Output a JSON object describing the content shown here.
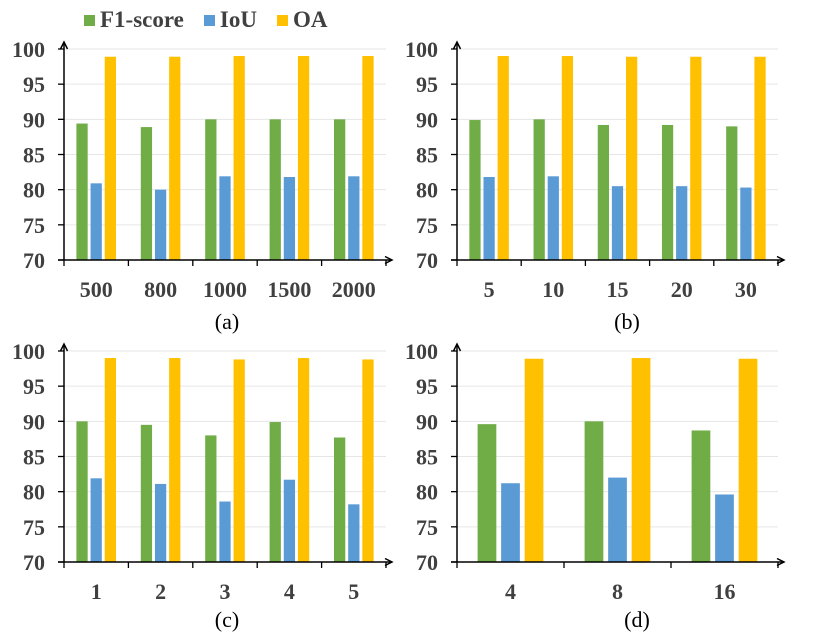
{
  "legend": [
    {
      "label": "F1-score",
      "color": "#70AD47"
    },
    {
      "label": "IoU",
      "color": "#5B9BD5"
    },
    {
      "label": "OA",
      "color": "#FFC000"
    }
  ],
  "colors": {
    "axis": "#000000",
    "grid": "#E6E6E6",
    "tick_text": "#404040"
  },
  "chart_data": [
    {
      "type": "bar",
      "caption": "(a)",
      "categories": [
        "500",
        "800",
        "1000",
        "1500",
        "2000"
      ],
      "series": [
        {
          "name": "F1-score",
          "values": [
            89.4,
            88.9,
            90.0,
            90.0,
            90.0
          ]
        },
        {
          "name": "IoU",
          "values": [
            80.9,
            80.0,
            81.9,
            81.8,
            81.9
          ]
        },
        {
          "name": "OA",
          "values": [
            98.9,
            98.9,
            99.0,
            99.0,
            99.0
          ]
        }
      ],
      "yticks": [
        "70",
        "75",
        "80",
        "85",
        "90",
        "95",
        "100"
      ],
      "ylim": [
        70,
        100
      ],
      "xlabel": "",
      "ylabel": "",
      "grid": true,
      "legend": "top-left"
    },
    {
      "type": "bar",
      "caption": "(b)",
      "categories": [
        "5",
        "10",
        "15",
        "20",
        "30"
      ],
      "series": [
        {
          "name": "F1-score",
          "values": [
            89.9,
            90.0,
            89.2,
            89.2,
            89.0
          ]
        },
        {
          "name": "IoU",
          "values": [
            81.8,
            81.9,
            80.5,
            80.5,
            80.3
          ]
        },
        {
          "name": "OA",
          "values": [
            99.0,
            99.0,
            98.9,
            98.9,
            98.9
          ]
        }
      ],
      "yticks": [
        "70",
        "75",
        "80",
        "85",
        "90",
        "95",
        "100"
      ],
      "ylim": [
        70,
        100
      ],
      "xlabel": "",
      "ylabel": "",
      "grid": true
    },
    {
      "type": "bar",
      "caption": "(c)",
      "categories": [
        "1",
        "2",
        "3",
        "4",
        "5"
      ],
      "series": [
        {
          "name": "F1-score",
          "values": [
            90.0,
            89.5,
            88.0,
            89.9,
            87.7
          ]
        },
        {
          "name": "IoU",
          "values": [
            81.9,
            81.1,
            78.6,
            81.7,
            78.2
          ]
        },
        {
          "name": "OA",
          "values": [
            99.0,
            99.0,
            98.8,
            99.0,
            98.8
          ]
        }
      ],
      "yticks": [
        "70",
        "75",
        "80",
        "85",
        "90",
        "95",
        "100"
      ],
      "ylim": [
        70,
        100
      ],
      "xlabel": "",
      "ylabel": "",
      "grid": true
    },
    {
      "type": "bar",
      "caption": "(d)",
      "categories": [
        "4",
        "8",
        "16"
      ],
      "series": [
        {
          "name": "F1-score",
          "values": [
            89.6,
            90.0,
            88.7
          ]
        },
        {
          "name": "IoU",
          "values": [
            81.2,
            82.0,
            79.6
          ]
        },
        {
          "name": "OA",
          "values": [
            98.9,
            99.0,
            98.9
          ]
        }
      ],
      "yticks": [
        "70",
        "75",
        "80",
        "85",
        "90",
        "95",
        "100"
      ],
      "ylim": [
        70,
        100
      ],
      "xlabel": "",
      "ylabel": "",
      "grid": true
    }
  ]
}
